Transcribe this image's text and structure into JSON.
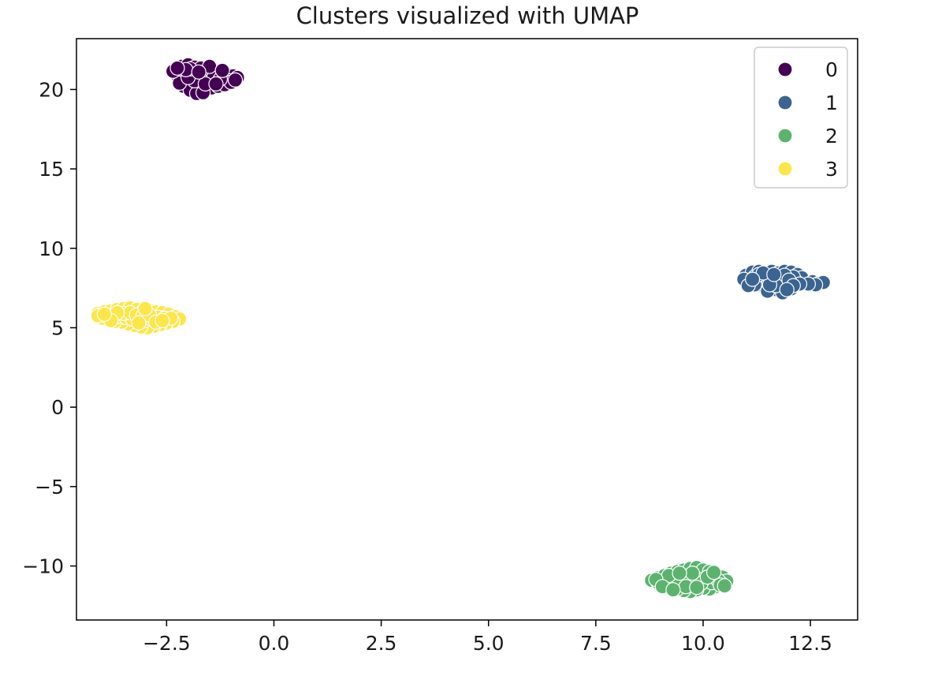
{
  "chart_data": {
    "type": "scatter",
    "title": "Clusters visualized with UMAP",
    "xlabel": "",
    "ylabel": "",
    "xlim": [
      -4.6,
      13.6
    ],
    "ylim": [
      -13.4,
      23.2
    ],
    "x_ticks": [
      -2.5,
      0.0,
      2.5,
      5.0,
      7.5,
      10.0,
      12.5
    ],
    "x_tick_labels": [
      "−2.5",
      "0.0",
      "2.5",
      "5.0",
      "7.5",
      "10.0",
      "12.5"
    ],
    "y_ticks": [
      -10,
      -5,
      0,
      5,
      10,
      15,
      20
    ],
    "y_tick_labels": [
      "−10",
      "−5",
      "0",
      "5",
      "10",
      "15",
      "20"
    ],
    "grid": false,
    "legend_position": "top-right",
    "marker_edge_color": "#ffffff",
    "series": [
      {
        "name": "0",
        "color": "#440154",
        "points": [
          [
            -2.3,
            21.3
          ],
          [
            -2.15,
            21.45
          ],
          [
            -2.0,
            21.55
          ],
          [
            -1.85,
            21.4
          ],
          [
            -1.7,
            21.35
          ],
          [
            -1.55,
            21.2
          ],
          [
            -1.4,
            21.05
          ],
          [
            -1.25,
            20.9
          ],
          [
            -1.1,
            20.95
          ],
          [
            -0.95,
            20.85
          ],
          [
            -0.85,
            20.75
          ],
          [
            -1.05,
            20.55
          ],
          [
            -1.2,
            20.4
          ],
          [
            -1.35,
            20.5
          ],
          [
            -1.5,
            20.65
          ],
          [
            -1.65,
            20.8
          ],
          [
            -1.8,
            20.95
          ],
          [
            -1.95,
            21.1
          ],
          [
            -2.1,
            21.05
          ],
          [
            -2.25,
            20.9
          ],
          [
            -2.15,
            20.7
          ],
          [
            -2.05,
            20.5
          ],
          [
            -1.9,
            20.3
          ],
          [
            -1.75,
            20.15
          ],
          [
            -1.6,
            20.05
          ],
          [
            -1.45,
            20.1
          ],
          [
            -1.3,
            20.2
          ],
          [
            -1.15,
            20.3
          ],
          [
            -1.0,
            20.45
          ],
          [
            -2.1,
            20.2
          ],
          [
            -1.95,
            19.95
          ],
          [
            -1.8,
            19.75
          ],
          [
            -1.65,
            19.8
          ],
          [
            -2.2,
            20.4
          ],
          [
            -1.55,
            20.45
          ],
          [
            -1.7,
            20.6
          ],
          [
            -1.85,
            20.55
          ],
          [
            -2.0,
            20.75
          ],
          [
            -1.4,
            20.75
          ],
          [
            -1.25,
            20.65
          ],
          [
            -2.35,
            21.15
          ],
          [
            -1.5,
            21.45
          ],
          [
            -1.2,
            21.2
          ],
          [
            -0.9,
            20.6
          ],
          [
            -1.95,
            21.3
          ],
          [
            -2.05,
            21.25
          ],
          [
            -1.6,
            20.35
          ],
          [
            -1.35,
            20.35
          ],
          [
            -1.75,
            21.1
          ],
          [
            -2.25,
            21.35
          ]
        ]
      },
      {
        "name": "1",
        "color": "#3b6491",
        "points": [
          [
            11.0,
            8.3
          ],
          [
            11.15,
            8.5
          ],
          [
            11.3,
            8.55
          ],
          [
            11.45,
            8.4
          ],
          [
            11.6,
            8.55
          ],
          [
            11.75,
            8.45
          ],
          [
            11.9,
            8.55
          ],
          [
            12.05,
            8.5
          ],
          [
            12.2,
            8.35
          ],
          [
            12.3,
            8.15
          ],
          [
            12.15,
            7.95
          ],
          [
            12.0,
            7.75
          ],
          [
            11.85,
            7.55
          ],
          [
            11.7,
            7.4
          ],
          [
            11.55,
            7.5
          ],
          [
            11.4,
            7.65
          ],
          [
            11.25,
            7.8
          ],
          [
            11.1,
            7.95
          ],
          [
            10.95,
            8.05
          ],
          [
            11.2,
            8.2
          ],
          [
            11.35,
            8.05
          ],
          [
            11.5,
            7.9
          ],
          [
            11.65,
            7.8
          ],
          [
            11.8,
            7.95
          ],
          [
            11.95,
            8.1
          ],
          [
            12.1,
            8.2
          ],
          [
            11.6,
            8.2
          ],
          [
            11.75,
            8.1
          ],
          [
            11.45,
            8.25
          ],
          [
            11.9,
            8.3
          ],
          [
            12.55,
            7.9
          ],
          [
            12.7,
            7.8
          ],
          [
            12.8,
            7.85
          ],
          [
            12.62,
            7.7
          ],
          [
            12.45,
            7.75
          ],
          [
            11.2,
            7.7
          ],
          [
            11.5,
            7.3
          ],
          [
            11.85,
            7.2
          ],
          [
            12.05,
            7.45
          ],
          [
            11.05,
            7.65
          ],
          [
            12.25,
            7.75
          ],
          [
            11.3,
            8.35
          ],
          [
            11.7,
            7.65
          ],
          [
            12.0,
            8.0
          ],
          [
            11.55,
            7.7
          ],
          [
            11.4,
            8.45
          ],
          [
            12.1,
            7.65
          ],
          [
            11.15,
            8.05
          ],
          [
            11.95,
            7.4
          ],
          [
            11.65,
            8.35
          ]
        ]
      },
      {
        "name": "2",
        "color": "#5cb36e",
        "points": [
          [
            8.8,
            -10.9
          ],
          [
            8.95,
            -10.75
          ],
          [
            9.1,
            -10.6
          ],
          [
            9.25,
            -10.45
          ],
          [
            9.4,
            -10.35
          ],
          [
            9.55,
            -10.25
          ],
          [
            9.7,
            -10.15
          ],
          [
            9.85,
            -10.1
          ],
          [
            10.0,
            -10.25
          ],
          [
            10.15,
            -10.35
          ],
          [
            10.3,
            -10.5
          ],
          [
            10.45,
            -10.7
          ],
          [
            10.55,
            -10.95
          ],
          [
            10.45,
            -11.15
          ],
          [
            10.3,
            -11.3
          ],
          [
            10.15,
            -11.45
          ],
          [
            10.0,
            -11.4
          ],
          [
            9.85,
            -11.5
          ],
          [
            9.7,
            -11.6
          ],
          [
            9.55,
            -11.55
          ],
          [
            9.4,
            -11.45
          ],
          [
            9.25,
            -11.35
          ],
          [
            9.1,
            -11.2
          ],
          [
            8.95,
            -11.05
          ],
          [
            9.15,
            -10.9
          ],
          [
            9.3,
            -10.8
          ],
          [
            9.45,
            -10.7
          ],
          [
            9.6,
            -10.65
          ],
          [
            9.75,
            -10.75
          ],
          [
            9.9,
            -10.85
          ],
          [
            10.05,
            -10.95
          ],
          [
            10.2,
            -11.05
          ],
          [
            10.35,
            -10.9
          ],
          [
            9.5,
            -11.0
          ],
          [
            9.65,
            -11.1
          ],
          [
            9.8,
            -11.2
          ],
          [
            9.95,
            -11.1
          ],
          [
            9.35,
            -11.05
          ],
          [
            10.1,
            -10.7
          ],
          [
            9.2,
            -10.6
          ],
          [
            8.9,
            -10.85
          ],
          [
            10.4,
            -11.2
          ],
          [
            9.6,
            -11.3
          ],
          [
            9.75,
            -10.45
          ],
          [
            10.25,
            -10.4
          ],
          [
            9.05,
            -11.3
          ],
          [
            9.85,
            -11.35
          ],
          [
            9.45,
            -10.45
          ],
          [
            10.5,
            -11.25
          ],
          [
            9.3,
            -11.5
          ]
        ]
      },
      {
        "name": "3",
        "color": "#fde64a",
        "points": [
          [
            -4.1,
            5.9
          ],
          [
            -3.95,
            6.0
          ],
          [
            -3.8,
            6.05
          ],
          [
            -3.65,
            6.15
          ],
          [
            -3.5,
            6.2
          ],
          [
            -3.35,
            6.25
          ],
          [
            -3.2,
            6.15
          ],
          [
            -3.05,
            6.05
          ],
          [
            -2.9,
            6.1
          ],
          [
            -2.75,
            6.0
          ],
          [
            -2.6,
            5.95
          ],
          [
            -2.45,
            5.85
          ],
          [
            -2.3,
            5.7
          ],
          [
            -2.2,
            5.55
          ],
          [
            -2.35,
            5.4
          ],
          [
            -2.5,
            5.3
          ],
          [
            -2.65,
            5.2
          ],
          [
            -2.8,
            5.1
          ],
          [
            -2.95,
            5.0
          ],
          [
            -3.1,
            5.05
          ],
          [
            -3.25,
            5.15
          ],
          [
            -3.4,
            5.25
          ],
          [
            -3.55,
            5.35
          ],
          [
            -3.7,
            5.4
          ],
          [
            -3.85,
            5.5
          ],
          [
            -4.0,
            5.6
          ],
          [
            -4.1,
            5.75
          ],
          [
            -3.9,
            5.75
          ],
          [
            -3.75,
            5.8
          ],
          [
            -3.6,
            5.7
          ],
          [
            -3.45,
            5.65
          ],
          [
            -3.3,
            5.55
          ],
          [
            -3.15,
            5.5
          ],
          [
            -3.0,
            5.45
          ],
          [
            -2.85,
            5.55
          ],
          [
            -2.7,
            5.65
          ],
          [
            -2.55,
            5.6
          ],
          [
            -3.5,
            5.9
          ],
          [
            -3.35,
            5.95
          ],
          [
            -3.2,
            5.8
          ],
          [
            -3.05,
            5.75
          ],
          [
            -2.9,
            5.8
          ],
          [
            -3.65,
            5.95
          ],
          [
            -2.75,
            5.35
          ],
          [
            -3.15,
            5.3
          ],
          [
            -3.0,
            6.2
          ],
          [
            -2.4,
            5.6
          ],
          [
            -3.8,
            5.45
          ],
          [
            -3.95,
            5.85
          ],
          [
            -2.6,
            5.45
          ]
        ]
      }
    ]
  }
}
